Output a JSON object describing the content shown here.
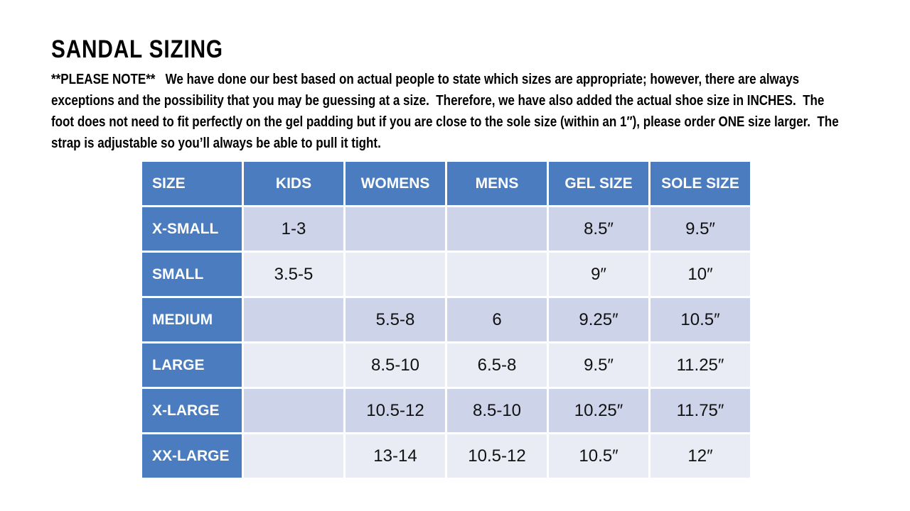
{
  "page": {
    "title": "SANDAL SIZING",
    "note": "**PLEASE NOTE**   We have done our best based on actual people to state which sizes are appropriate; however, there are always exceptions and the possibility that you may be guessing at a size.  Therefore, we have also added the actual shoe size in INCHES.  The foot does not need to fit perfectly on the gel padding but if you are close to the sole size (within an 1″), please order ONE size larger.  The strap is adjustable so you’ll always be able to pull it tight."
  },
  "colors": {
    "header_blue": "#4a7cbf",
    "band_dark": "#cdd3e9",
    "band_light": "#eaecf5"
  },
  "table": {
    "headers": [
      "SIZE",
      "KIDS",
      "WOMENS",
      "MENS",
      "GEL SIZE",
      "SOLE SIZE"
    ],
    "rows": [
      {
        "size": "X-SMALL",
        "kids": "1-3",
        "womens": "",
        "mens": "",
        "gel": "8.5″",
        "sole": "9.5″"
      },
      {
        "size": "SMALL",
        "kids": "3.5-5",
        "womens": "",
        "mens": "",
        "gel": "9″",
        "sole": "10″"
      },
      {
        "size": "MEDIUM",
        "kids": "",
        "womens": "5.5-8",
        "mens": "6",
        "gel": "9.25″",
        "sole": "10.5″"
      },
      {
        "size": "LARGE",
        "kids": "",
        "womens": "8.5-10",
        "mens": "6.5-8",
        "gel": "9.5″",
        "sole": "11.25″"
      },
      {
        "size": "X-LARGE",
        "kids": "",
        "womens": "10.5-12",
        "mens": "8.5-10",
        "gel": "10.25″",
        "sole": "11.75″"
      },
      {
        "size": "XX-LARGE",
        "kids": "",
        "womens": "13-14",
        "mens": "10.5-12",
        "gel": "10.5″",
        "sole": "12″"
      }
    ]
  }
}
